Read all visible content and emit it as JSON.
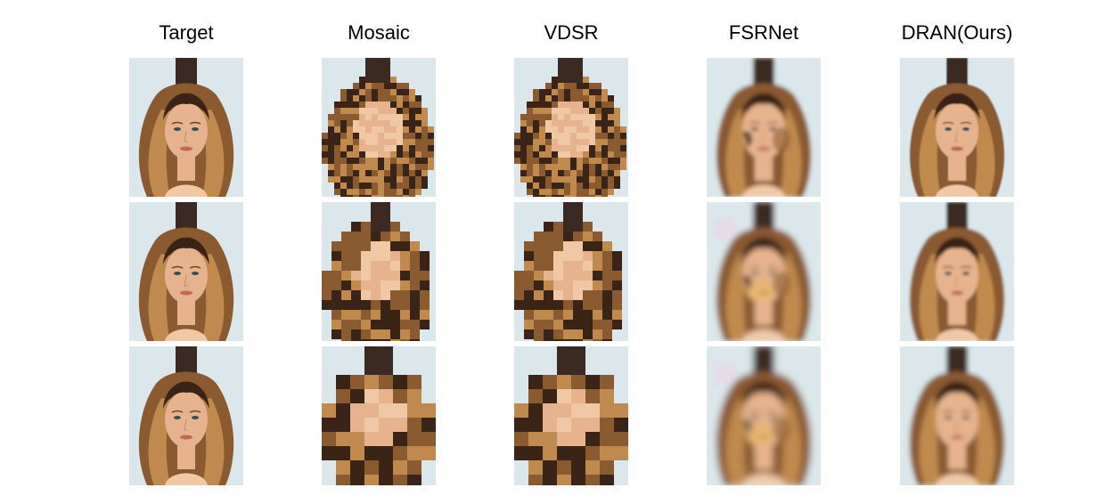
{
  "figure": {
    "columns": [
      {
        "key": "target",
        "label": "Target"
      },
      {
        "key": "mosaic",
        "label": "Mosaic"
      },
      {
        "key": "vdsr",
        "label": "VDSR"
      },
      {
        "key": "fsrnet",
        "label": "FSRNet"
      },
      {
        "key": "dran",
        "label": "DRAN(Ours)"
      }
    ],
    "rows": 3,
    "colors": {
      "background_wall": "#dbe7ea",
      "hair_dark": "#3a2418",
      "hair_mid": "#8a5a30",
      "hair_light": "#c08a4e",
      "skin": "#e6b38e",
      "skin_light": "#f0c8a6",
      "pole": "#3b2a22",
      "shirt": "#f2f2f2"
    }
  }
}
